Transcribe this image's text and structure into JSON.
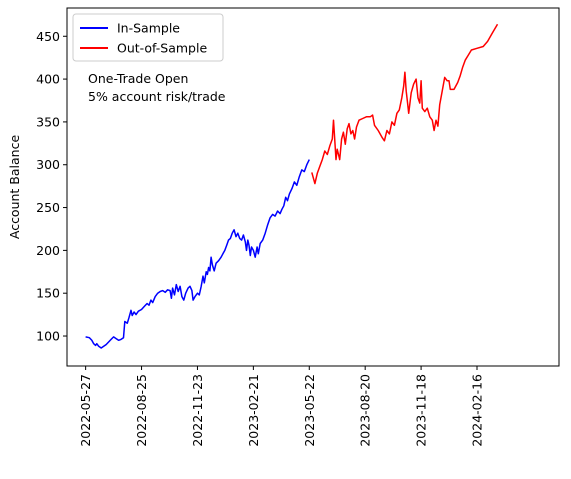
{
  "chart_data": {
    "type": "line",
    "ylabel": "Account Balance",
    "xlabel": "",
    "ylim": [
      65,
      483
    ],
    "xlim": [
      "2022-04-27",
      "2024-06-27"
    ],
    "x_ticks": [
      "2022-05-27",
      "2022-08-25",
      "2022-11-23",
      "2023-02-21",
      "2023-05-22",
      "2023-08-20",
      "2023-11-18",
      "2024-02-16"
    ],
    "y_ticks": [
      100,
      150,
      200,
      250,
      300,
      350,
      400,
      450
    ],
    "grid": false,
    "legend": "top-left",
    "annotation_lines": [
      "One-Trade Open",
      "5% account risk/trade"
    ],
    "series": [
      {
        "name": "In-Sample",
        "color": "#0000ff",
        "points": [
          [
            "2022-05-27",
            99
          ],
          [
            "2022-06-02",
            98
          ],
          [
            "2022-06-06",
            95
          ],
          [
            "2022-06-09",
            91
          ],
          [
            "2022-06-12",
            89
          ],
          [
            "2022-06-14",
            91
          ],
          [
            "2022-06-17",
            88
          ],
          [
            "2022-06-21",
            86
          ],
          [
            "2022-06-25",
            88
          ],
          [
            "2022-06-29",
            90
          ],
          [
            "2022-07-03",
            93
          ],
          [
            "2022-07-07",
            96
          ],
          [
            "2022-07-11",
            99
          ],
          [
            "2022-07-15",
            97
          ],
          [
            "2022-07-19",
            95
          ],
          [
            "2022-07-23",
            96
          ],
          [
            "2022-07-27",
            98
          ],
          [
            "2022-07-29",
            117
          ],
          [
            "2022-08-02",
            115
          ],
          [
            "2022-08-05",
            122
          ],
          [
            "2022-08-08",
            130
          ],
          [
            "2022-08-10",
            124
          ],
          [
            "2022-08-13",
            128
          ],
          [
            "2022-08-16",
            125
          ],
          [
            "2022-08-20",
            129
          ],
          [
            "2022-08-25",
            131
          ],
          [
            "2022-08-30",
            135
          ],
          [
            "2022-09-03",
            138
          ],
          [
            "2022-09-06",
            136
          ],
          [
            "2022-09-09",
            142
          ],
          [
            "2022-09-12",
            139
          ],
          [
            "2022-09-16",
            146
          ],
          [
            "2022-09-20",
            150
          ],
          [
            "2022-09-24",
            152
          ],
          [
            "2022-09-28",
            153
          ],
          [
            "2022-10-02",
            151
          ],
          [
            "2022-10-06",
            154
          ],
          [
            "2022-10-10",
            153
          ],
          [
            "2022-10-12",
            144
          ],
          [
            "2022-10-14",
            156
          ],
          [
            "2022-10-17",
            148
          ],
          [
            "2022-10-20",
            160
          ],
          [
            "2022-10-23",
            152
          ],
          [
            "2022-10-26",
            158
          ],
          [
            "2022-10-29",
            146
          ],
          [
            "2022-11-01",
            142
          ],
          [
            "2022-11-04",
            150
          ],
          [
            "2022-11-08",
            156
          ],
          [
            "2022-11-11",
            158
          ],
          [
            "2022-11-14",
            153
          ],
          [
            "2022-11-16",
            142
          ],
          [
            "2022-11-19",
            146
          ],
          [
            "2022-11-23",
            150
          ],
          [
            "2022-11-26",
            148
          ],
          [
            "2022-11-29",
            158
          ],
          [
            "2022-12-02",
            170
          ],
          [
            "2022-12-04",
            162
          ],
          [
            "2022-12-07",
            175
          ],
          [
            "2022-12-09",
            172
          ],
          [
            "2022-12-11",
            180
          ],
          [
            "2022-12-13",
            176
          ],
          [
            "2022-12-15",
            192
          ],
          [
            "2022-12-17",
            183
          ],
          [
            "2022-12-20",
            176
          ],
          [
            "2022-12-23",
            185
          ],
          [
            "2022-12-27",
            188
          ],
          [
            "2022-12-31",
            192
          ],
          [
            "2023-01-03",
            196
          ],
          [
            "2023-01-06",
            200
          ],
          [
            "2023-01-09",
            206
          ],
          [
            "2023-01-12",
            212
          ],
          [
            "2023-01-15",
            214
          ],
          [
            "2023-01-18",
            220
          ],
          [
            "2023-01-21",
            224
          ],
          [
            "2023-01-24",
            216
          ],
          [
            "2023-01-27",
            220
          ],
          [
            "2023-01-30",
            214
          ],
          [
            "2023-02-02",
            212
          ],
          [
            "2023-02-05",
            218
          ],
          [
            "2023-02-08",
            210
          ],
          [
            "2023-02-10",
            200
          ],
          [
            "2023-02-12",
            212
          ],
          [
            "2023-02-14",
            206
          ],
          [
            "2023-02-16",
            194
          ],
          [
            "2023-02-18",
            204
          ],
          [
            "2023-02-21",
            200
          ],
          [
            "2023-02-24",
            192
          ],
          [
            "2023-02-27",
            204
          ],
          [
            "2023-03-01",
            196
          ],
          [
            "2023-03-04",
            208
          ],
          [
            "2023-03-08",
            212
          ],
          [
            "2023-03-12",
            220
          ],
          [
            "2023-03-16",
            230
          ],
          [
            "2023-03-20",
            238
          ],
          [
            "2023-03-24",
            242
          ],
          [
            "2023-03-28",
            240
          ],
          [
            "2023-04-01",
            246
          ],
          [
            "2023-04-05",
            243
          ],
          [
            "2023-04-08",
            248
          ],
          [
            "2023-04-11",
            252
          ],
          [
            "2023-04-14",
            262
          ],
          [
            "2023-04-17",
            258
          ],
          [
            "2023-04-20",
            266
          ],
          [
            "2023-04-24",
            272
          ],
          [
            "2023-04-28",
            280
          ],
          [
            "2023-05-02",
            276
          ],
          [
            "2023-05-06",
            286
          ],
          [
            "2023-05-10",
            294
          ],
          [
            "2023-05-14",
            292
          ],
          [
            "2023-05-18",
            300
          ],
          [
            "2023-05-22",
            306
          ]
        ]
      },
      {
        "name": "Out-of-Sample",
        "color": "#ff0000",
        "points": [
          [
            "2023-05-26",
            291
          ],
          [
            "2023-05-31",
            278
          ],
          [
            "2023-06-04",
            290
          ],
          [
            "2023-06-08",
            298
          ],
          [
            "2023-06-12",
            306
          ],
          [
            "2023-06-16",
            316
          ],
          [
            "2023-06-20",
            312
          ],
          [
            "2023-06-24",
            322
          ],
          [
            "2023-06-28",
            330
          ],
          [
            "2023-06-30",
            352
          ],
          [
            "2023-07-02",
            330
          ],
          [
            "2023-07-04",
            306
          ],
          [
            "2023-07-06",
            318
          ],
          [
            "2023-07-08",
            312
          ],
          [
            "2023-07-10",
            306
          ],
          [
            "2023-07-13",
            330
          ],
          [
            "2023-07-16",
            338
          ],
          [
            "2023-07-19",
            324
          ],
          [
            "2023-07-22",
            342
          ],
          [
            "2023-07-25",
            348
          ],
          [
            "2023-07-28",
            336
          ],
          [
            "2023-07-31",
            340
          ],
          [
            "2023-08-03",
            330
          ],
          [
            "2023-08-06",
            344
          ],
          [
            "2023-08-10",
            352
          ],
          [
            "2023-08-16",
            354
          ],
          [
            "2023-08-22",
            356
          ],
          [
            "2023-08-28",
            356
          ],
          [
            "2023-09-01",
            358
          ],
          [
            "2023-09-04",
            346
          ],
          [
            "2023-09-10",
            340
          ],
          [
            "2023-09-16",
            332
          ],
          [
            "2023-09-20",
            328
          ],
          [
            "2023-09-24",
            340
          ],
          [
            "2023-09-28",
            336
          ],
          [
            "2023-10-02",
            350
          ],
          [
            "2023-10-06",
            346
          ],
          [
            "2023-10-10",
            360
          ],
          [
            "2023-10-14",
            364
          ],
          [
            "2023-10-18",
            378
          ],
          [
            "2023-10-21",
            392
          ],
          [
            "2023-10-23",
            408
          ],
          [
            "2023-10-25",
            386
          ],
          [
            "2023-10-27",
            374
          ],
          [
            "2023-10-29",
            360
          ],
          [
            "2023-11-02",
            384
          ],
          [
            "2023-11-06",
            394
          ],
          [
            "2023-11-10",
            400
          ],
          [
            "2023-11-13",
            378
          ],
          [
            "2023-11-16",
            372
          ],
          [
            "2023-11-18",
            398
          ],
          [
            "2023-11-20",
            366
          ],
          [
            "2023-11-24",
            362
          ],
          [
            "2023-11-28",
            366
          ],
          [
            "2023-12-02",
            356
          ],
          [
            "2023-12-06",
            352
          ],
          [
            "2023-12-09",
            340
          ],
          [
            "2023-12-12",
            352
          ],
          [
            "2023-12-15",
            345
          ],
          [
            "2023-12-18",
            370
          ],
          [
            "2023-12-22",
            386
          ],
          [
            "2023-12-26",
            402
          ],
          [
            "2023-12-30",
            398
          ],
          [
            "2024-01-02",
            398
          ],
          [
            "2024-01-04",
            388
          ],
          [
            "2024-01-10",
            388
          ],
          [
            "2024-01-16",
            396
          ],
          [
            "2024-01-20",
            404
          ],
          [
            "2024-01-24",
            414
          ],
          [
            "2024-01-28",
            422
          ],
          [
            "2024-02-02",
            428
          ],
          [
            "2024-02-07",
            434
          ],
          [
            "2024-02-16",
            436
          ],
          [
            "2024-02-26",
            438
          ],
          [
            "2024-03-04",
            444
          ],
          [
            "2024-03-12",
            454
          ],
          [
            "2024-03-20",
            464
          ]
        ]
      }
    ]
  }
}
